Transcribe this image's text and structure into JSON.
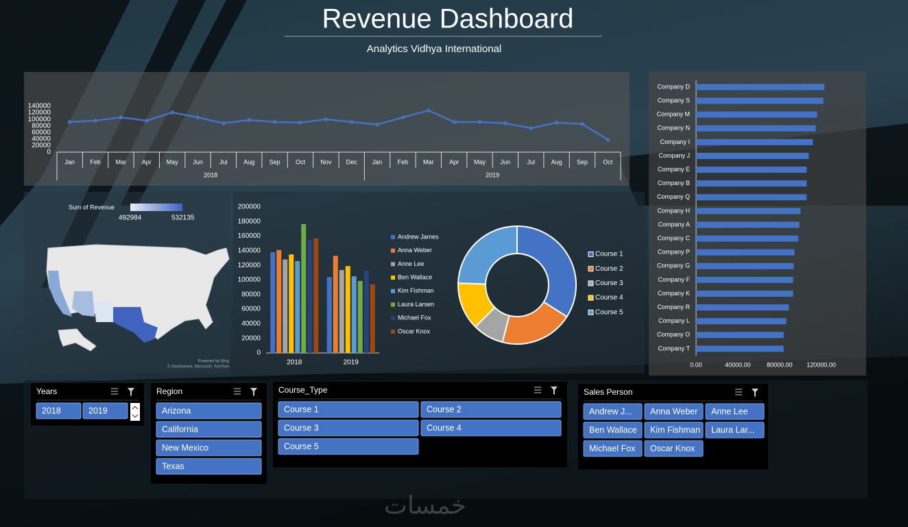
{
  "header": {
    "title": "Revenue Dashboard",
    "subtitle": "Analytics Vidhya International"
  },
  "chart_data": [
    {
      "type": "line",
      "groups": [
        {
          "name": "2018",
          "categories": [
            "Jan",
            "Feb",
            "Mar",
            "Apr",
            "May",
            "Jun",
            "Jul",
            "Aug",
            "Sep",
            "Oct",
            "Nov",
            "Dec"
          ]
        },
        {
          "name": "2019",
          "categories": [
            "Jan",
            "Feb",
            "Mar",
            "Apr",
            "May",
            "Jun",
            "Jul",
            "Aug",
            "Sep",
            "Oct"
          ]
        }
      ],
      "series": [
        {
          "color": "#4472c4",
          "values": [
            92000,
            96000,
            106000,
            96000,
            121000,
            106000,
            88000,
            98000,
            92000,
            90000,
            100000,
            92000,
            84000,
            106000,
            127000,
            92000,
            92000,
            88000,
            73000,
            90000,
            86000,
            38000
          ]
        }
      ],
      "ylim": [
        0,
        140000
      ],
      "yticks": [
        0,
        20000,
        40000,
        60000,
        80000,
        100000,
        120000,
        140000
      ]
    },
    {
      "type": "map",
      "legend_title": "Sum of Revenue",
      "min": 492984,
      "max": 532135,
      "credit": "Powered by Bing",
      "attribution": "© GeoNames, Microsoft, TomTom"
    },
    {
      "type": "bar",
      "categories": [
        "2018",
        "2019"
      ],
      "series": [
        {
          "name": "Andrew James",
          "color": "#4472c4",
          "values": [
            138000,
            104000
          ]
        },
        {
          "name": "Anna Weber",
          "color": "#ed7d31",
          "values": [
            141000,
            133000
          ]
        },
        {
          "name": "Anne Lee",
          "color": "#a5a5a5",
          "values": [
            128000,
            113600
          ]
        },
        {
          "name": "Ben Wallace",
          "color": "#ffc000",
          "values": [
            135000,
            119000
          ]
        },
        {
          "name": "Kim Fishman",
          "color": "#5b9bd5",
          "values": [
            126000,
            105000
          ]
        },
        {
          "name": "Laura Larsen",
          "color": "#70ad47",
          "values": [
            176500,
            98600
          ]
        },
        {
          "name": "Michael Fox",
          "color": "#264478",
          "values": [
            155000,
            112700
          ]
        },
        {
          "name": "Oscar Knox",
          "color": "#9e480e",
          "values": [
            157000,
            94000
          ]
        }
      ],
      "ylim": [
        0,
        200000
      ],
      "yticks": [
        0,
        20000,
        40000,
        60000,
        80000,
        100000,
        120000,
        140000,
        160000,
        180000,
        200000
      ]
    },
    {
      "type": "pie",
      "donut": true,
      "categories": [
        "Course 1",
        "Course 2",
        "Course 3",
        "Course 4",
        "Course 5"
      ],
      "values": [
        34,
        20,
        8.5,
        13,
        24.5
      ],
      "colors": [
        "#4472c4",
        "#ed7d31",
        "#a5a5a5",
        "#ffc000",
        "#5b9bd5"
      ]
    },
    {
      "type": "barh",
      "color": "#4472c4",
      "categories": [
        "Company D",
        "Company S",
        "Company M",
        "Company N",
        "Company I",
        "Company J",
        "Company E",
        "Company B",
        "Company Q",
        "Company H",
        "Company A",
        "Company C",
        "Company P",
        "Company G",
        "Company F",
        "Company K",
        "Company R",
        "Company L",
        "Company O",
        "Company T"
      ],
      "values": [
        123000,
        122000,
        116000,
        114700,
        112000,
        108000,
        106000,
        106000,
        106000,
        100000,
        99000,
        98000,
        94400,
        93700,
        93000,
        93000,
        89000,
        86500,
        84000,
        84000
      ],
      "xlim": [
        0,
        140000
      ],
      "xticks": [
        {
          "value": 0,
          "label": "0.00"
        },
        {
          "value": 40000,
          "label": "40000.00"
        },
        {
          "value": 80000,
          "label": "80000.00"
        },
        {
          "value": 120000,
          "label": "120000.00"
        }
      ]
    }
  ],
  "slicers": [
    {
      "title": "Years",
      "items": [
        "2018",
        "2019"
      ]
    },
    {
      "title": "Region",
      "items": [
        "Arizona",
        "California",
        "New Mexico",
        "Texas"
      ]
    },
    {
      "title": "Course_Type",
      "items": [
        "Course 1",
        "Course 2",
        "Course 3",
        "Course 4",
        "Course 5"
      ]
    },
    {
      "title": "Sales Person",
      "items": [
        "Andrew J...",
        "Anna Weber",
        "Anne Lee",
        "Ben Wallace",
        "Kim Fishman",
        "Laura Lar...",
        "Michael Fox",
        "Oscar Knox"
      ]
    }
  ],
  "watermark": "خمسات"
}
